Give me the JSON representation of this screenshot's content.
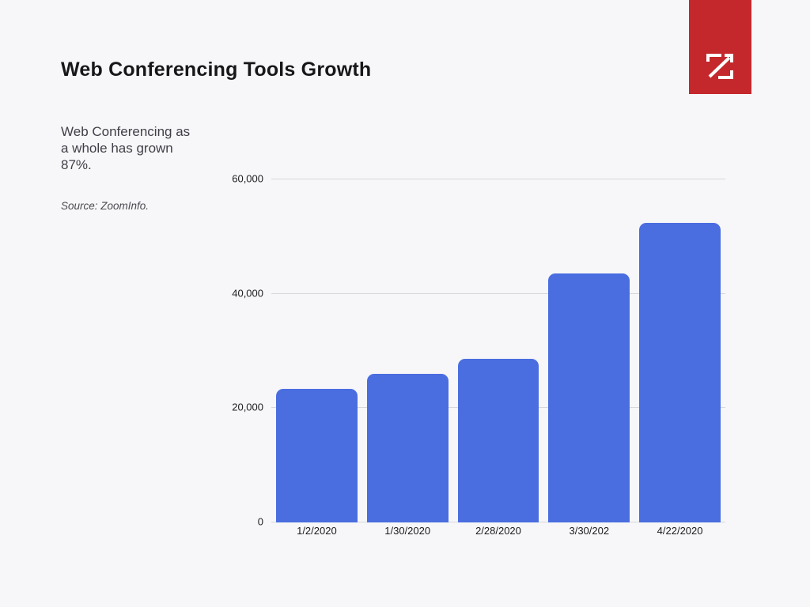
{
  "page": {
    "background": "#f7f7f9",
    "title": "Web Conferencing Tools Growth"
  },
  "sidebar": {
    "description": "Web Conferencing as\na whole has grown\n87%.",
    "source": "Source: ZoomInfo."
  },
  "logo": {
    "name": "zoominfo-logo",
    "background": "#c4282c",
    "glyph": "z-arrow-icon",
    "glyph_color": "#ffffff"
  },
  "chart_data": {
    "type": "bar",
    "title": "Web Conferencing Tools Growth",
    "categories": [
      "1/2/2020",
      "1/30/2020",
      "2/28/2020",
      "3/30/202",
      "4/22/2020"
    ],
    "values": [
      23400,
      26000,
      28600,
      43500,
      52400
    ],
    "bar_color": "#4a6ee0",
    "ylim": [
      0,
      60000
    ],
    "y_ticks": [
      {
        "value": 60000,
        "label": "60,000"
      },
      {
        "value": 40000,
        "label": "40,000"
      },
      {
        "value": 20000,
        "label": "20,000"
      },
      {
        "value": 0,
        "label": "0"
      }
    ],
    "grid": "horizontal",
    "legend": "none",
    "xlabel": "",
    "ylabel": ""
  }
}
